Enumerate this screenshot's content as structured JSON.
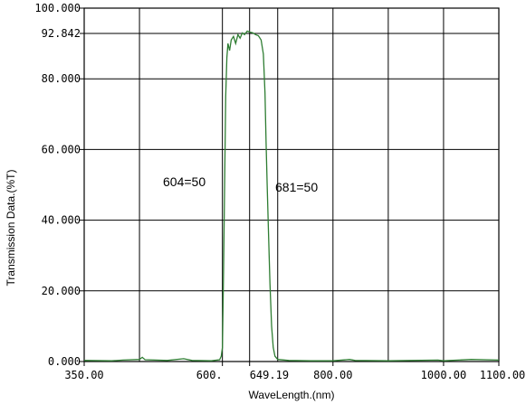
{
  "chart_data": {
    "type": "line",
    "xlabel": "WaveLength.(nm)",
    "ylabel": "Transmission Data.(%T)",
    "xlim": [
      350,
      1100
    ],
    "ylim": [
      0,
      100
    ],
    "grid": true,
    "x_ticks": [
      350,
      600,
      649.19,
      800,
      1000,
      1100
    ],
    "x_tick_labels": [
      "350.00",
      "600.",
      "649.19",
      "800.00",
      "1000.00",
      "1100.00"
    ],
    "y_ticks": [
      0,
      20,
      40,
      60,
      80,
      92.842,
      100
    ],
    "y_tick_labels": [
      "0.000",
      "20.000",
      "40.000",
      "60.000",
      "80.000",
      "92.842",
      "100.000"
    ],
    "annotations": [
      {
        "text": "604=50",
        "x": 604,
        "y": 50
      },
      {
        "text": "681=50",
        "x": 681,
        "y": 50
      }
    ],
    "series": [
      {
        "color": "#2e7d32",
        "points": [
          [
            350,
            0.3
          ],
          [
            400,
            0.2
          ],
          [
            420,
            0.4
          ],
          [
            450,
            0.6
          ],
          [
            455,
            1.2
          ],
          [
            460,
            0.5
          ],
          [
            500,
            0.3
          ],
          [
            530,
            0.8
          ],
          [
            545,
            0.3
          ],
          [
            580,
            0.2
          ],
          [
            595,
            0.5
          ],
          [
            598,
            1.5
          ],
          [
            600,
            4
          ],
          [
            602,
            25
          ],
          [
            604,
            50
          ],
          [
            606,
            75
          ],
          [
            608,
            86
          ],
          [
            610,
            90
          ],
          [
            613,
            88
          ],
          [
            616,
            91
          ],
          [
            620,
            92
          ],
          [
            624,
            90
          ],
          [
            628,
            92.5
          ],
          [
            632,
            91.5
          ],
          [
            636,
            93
          ],
          [
            640,
            92.5
          ],
          [
            645,
            93.5
          ],
          [
            650,
            93.2
          ],
          [
            655,
            93.0
          ],
          [
            660,
            92.5
          ],
          [
            665,
            92.2
          ],
          [
            670,
            91
          ],
          [
            674,
            87
          ],
          [
            677,
            76
          ],
          [
            679,
            62
          ],
          [
            681,
            50
          ],
          [
            683,
            38
          ],
          [
            686,
            22
          ],
          [
            689,
            10
          ],
          [
            692,
            4
          ],
          [
            695,
            1.5
          ],
          [
            700,
            0.6
          ],
          [
            720,
            0.3
          ],
          [
            760,
            0.2
          ],
          [
            800,
            0.2
          ],
          [
            830,
            0.6
          ],
          [
            840,
            0.3
          ],
          [
            900,
            0.2
          ],
          [
            990,
            0.4
          ],
          [
            1000,
            0.2
          ],
          [
            1050,
            0.6
          ],
          [
            1100,
            0.4
          ]
        ]
      }
    ]
  }
}
